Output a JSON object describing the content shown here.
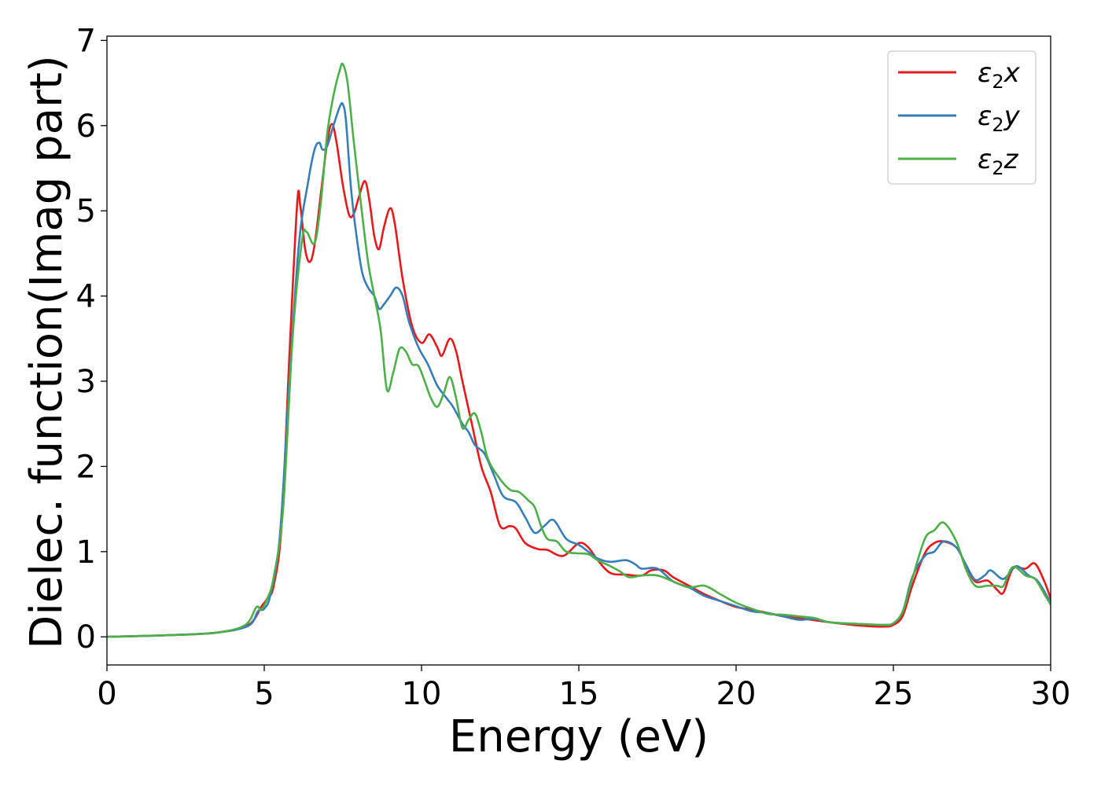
{
  "chart_data": {
    "type": "line",
    "title": "",
    "xlabel": "Energy (eV)",
    "ylabel": "Dielec. function(Imag part)",
    "xlim": [
      0,
      30
    ],
    "ylim": [
      -0.33,
      7.05
    ],
    "xticks": [
      0,
      5,
      10,
      15,
      20,
      25,
      30
    ],
    "yticks": [
      0,
      1,
      2,
      3,
      4,
      5,
      6,
      7
    ],
    "grid": false,
    "legend_position": "top-right",
    "series": [
      {
        "name": "ε₂x",
        "legend_base": "ε",
        "legend_sub": "2",
        "legend_suffix": "x",
        "color": "#e41a1c",
        "points": [
          [
            0,
            0
          ],
          [
            2,
            0.02
          ],
          [
            3.5,
            0.05
          ],
          [
            4.5,
            0.14
          ],
          [
            4.9,
            0.35
          ],
          [
            5.1,
            0.45
          ],
          [
            5.3,
            0.6
          ],
          [
            5.55,
            1.3
          ],
          [
            5.8,
            3.3
          ],
          [
            6.05,
            5.1
          ],
          [
            6.15,
            5.05
          ],
          [
            6.3,
            4.55
          ],
          [
            6.45,
            4.4
          ],
          [
            6.6,
            4.6
          ],
          [
            6.8,
            5.2
          ],
          [
            7.0,
            5.8
          ],
          [
            7.15,
            6.02
          ],
          [
            7.3,
            5.8
          ],
          [
            7.5,
            5.3
          ],
          [
            7.7,
            4.95
          ],
          [
            7.85,
            4.97
          ],
          [
            8.0,
            5.15
          ],
          [
            8.2,
            5.35
          ],
          [
            8.35,
            5.1
          ],
          [
            8.5,
            4.7
          ],
          [
            8.65,
            4.55
          ],
          [
            8.8,
            4.8
          ],
          [
            9.0,
            5.03
          ],
          [
            9.15,
            4.85
          ],
          [
            9.4,
            4.2
          ],
          [
            9.7,
            3.65
          ],
          [
            10.0,
            3.45
          ],
          [
            10.25,
            3.55
          ],
          [
            10.5,
            3.4
          ],
          [
            10.65,
            3.3
          ],
          [
            10.9,
            3.5
          ],
          [
            11.1,
            3.35
          ],
          [
            11.3,
            3.0
          ],
          [
            11.6,
            2.5
          ],
          [
            11.9,
            2.0
          ],
          [
            12.2,
            1.7
          ],
          [
            12.5,
            1.3
          ],
          [
            12.8,
            1.3
          ],
          [
            13.0,
            1.27
          ],
          [
            13.3,
            1.1
          ],
          [
            13.7,
            1.03
          ],
          [
            14.0,
            1.02
          ],
          [
            14.5,
            0.95
          ],
          [
            15.0,
            1.1
          ],
          [
            15.3,
            1.05
          ],
          [
            15.6,
            0.9
          ],
          [
            16.0,
            0.75
          ],
          [
            16.5,
            0.73
          ],
          [
            17.0,
            0.72
          ],
          [
            17.3,
            0.78
          ],
          [
            17.7,
            0.78
          ],
          [
            18.0,
            0.7
          ],
          [
            18.5,
            0.6
          ],
          [
            19.0,
            0.5
          ],
          [
            19.5,
            0.42
          ],
          [
            20.0,
            0.35
          ],
          [
            20.5,
            0.32
          ],
          [
            21.0,
            0.28
          ],
          [
            21.5,
            0.24
          ],
          [
            22.0,
            0.22
          ],
          [
            23.0,
            0.17
          ],
          [
            24.0,
            0.13
          ],
          [
            24.7,
            0.12
          ],
          [
            25.0,
            0.14
          ],
          [
            25.3,
            0.25
          ],
          [
            25.6,
            0.6
          ],
          [
            26.0,
            0.98
          ],
          [
            26.3,
            1.1
          ],
          [
            26.6,
            1.12
          ],
          [
            27.0,
            1.05
          ],
          [
            27.3,
            0.85
          ],
          [
            27.6,
            0.65
          ],
          [
            28.0,
            0.66
          ],
          [
            28.3,
            0.55
          ],
          [
            28.5,
            0.52
          ],
          [
            28.8,
            0.8
          ],
          [
            29.2,
            0.8
          ],
          [
            29.5,
            0.86
          ],
          [
            29.8,
            0.65
          ],
          [
            30,
            0.45
          ]
        ]
      },
      {
        "name": "ε₂y",
        "legend_base": "ε",
        "legend_sub": "2",
        "legend_suffix": "y",
        "color": "#377eb8",
        "points": [
          [
            0,
            0
          ],
          [
            2,
            0.02
          ],
          [
            3.5,
            0.05
          ],
          [
            4.5,
            0.13
          ],
          [
            4.8,
            0.3
          ],
          [
            5.0,
            0.33
          ],
          [
            5.2,
            0.5
          ],
          [
            5.5,
            1.2
          ],
          [
            5.8,
            3.0
          ],
          [
            6.1,
            4.6
          ],
          [
            6.4,
            5.35
          ],
          [
            6.6,
            5.72
          ],
          [
            6.75,
            5.8
          ],
          [
            6.85,
            5.72
          ],
          [
            7.0,
            5.76
          ],
          [
            7.2,
            6.0
          ],
          [
            7.4,
            6.22
          ],
          [
            7.5,
            6.25
          ],
          [
            7.6,
            6.05
          ],
          [
            7.75,
            5.3
          ],
          [
            7.9,
            4.8
          ],
          [
            8.1,
            4.3
          ],
          [
            8.3,
            4.1
          ],
          [
            8.5,
            4.0
          ],
          [
            8.65,
            3.85
          ],
          [
            8.8,
            3.9
          ],
          [
            9.0,
            4.0
          ],
          [
            9.2,
            4.1
          ],
          [
            9.4,
            4.0
          ],
          [
            9.6,
            3.7
          ],
          [
            9.9,
            3.4
          ],
          [
            10.2,
            3.2
          ],
          [
            10.5,
            2.95
          ],
          [
            10.8,
            2.8
          ],
          [
            11.0,
            2.7
          ],
          [
            11.3,
            2.5
          ],
          [
            11.5,
            2.4
          ],
          [
            11.7,
            2.25
          ],
          [
            12.0,
            2.15
          ],
          [
            12.3,
            1.9
          ],
          [
            12.6,
            1.65
          ],
          [
            13.0,
            1.58
          ],
          [
            13.3,
            1.4
          ],
          [
            13.6,
            1.22
          ],
          [
            13.9,
            1.3
          ],
          [
            14.2,
            1.37
          ],
          [
            14.6,
            1.15
          ],
          [
            15.0,
            1.08
          ],
          [
            15.3,
            1.0
          ],
          [
            15.6,
            0.92
          ],
          [
            16.0,
            0.88
          ],
          [
            16.5,
            0.9
          ],
          [
            16.8,
            0.85
          ],
          [
            17.0,
            0.8
          ],
          [
            17.5,
            0.8
          ],
          [
            18.0,
            0.65
          ],
          [
            18.5,
            0.58
          ],
          [
            19.0,
            0.48
          ],
          [
            19.5,
            0.42
          ],
          [
            20.0,
            0.36
          ],
          [
            20.5,
            0.3
          ],
          [
            21.0,
            0.28
          ],
          [
            21.5,
            0.24
          ],
          [
            22.0,
            0.2
          ],
          [
            22.5,
            0.21
          ],
          [
            23.0,
            0.17
          ],
          [
            24.0,
            0.15
          ],
          [
            24.7,
            0.14
          ],
          [
            25.0,
            0.16
          ],
          [
            25.3,
            0.3
          ],
          [
            25.6,
            0.7
          ],
          [
            26.0,
            0.95
          ],
          [
            26.3,
            1.0
          ],
          [
            26.6,
            1.12
          ],
          [
            27.0,
            1.05
          ],
          [
            27.3,
            0.85
          ],
          [
            27.6,
            0.67
          ],
          [
            27.9,
            0.72
          ],
          [
            28.1,
            0.78
          ],
          [
            28.5,
            0.68
          ],
          [
            28.9,
            0.83
          ],
          [
            29.3,
            0.72
          ],
          [
            29.6,
            0.65
          ],
          [
            30,
            0.4
          ]
        ]
      },
      {
        "name": "ε₂z",
        "legend_base": "ε",
        "legend_sub": "2",
        "legend_suffix": "z",
        "color": "#4daf4a",
        "points": [
          [
            0,
            0
          ],
          [
            2,
            0.02
          ],
          [
            3.5,
            0.05
          ],
          [
            4.4,
            0.14
          ],
          [
            4.75,
            0.35
          ],
          [
            4.9,
            0.32
          ],
          [
            5.1,
            0.45
          ],
          [
            5.3,
            0.7
          ],
          [
            5.6,
            1.5
          ],
          [
            5.9,
            3.5
          ],
          [
            6.2,
            4.65
          ],
          [
            6.35,
            4.75
          ],
          [
            6.6,
            4.62
          ],
          [
            6.8,
            5.1
          ],
          [
            7.0,
            5.9
          ],
          [
            7.2,
            6.35
          ],
          [
            7.4,
            6.65
          ],
          [
            7.5,
            6.72
          ],
          [
            7.65,
            6.5
          ],
          [
            7.85,
            5.8
          ],
          [
            8.1,
            5.0
          ],
          [
            8.3,
            4.4
          ],
          [
            8.5,
            4.0
          ],
          [
            8.7,
            3.6
          ],
          [
            8.9,
            2.9
          ],
          [
            9.1,
            3.1
          ],
          [
            9.3,
            3.38
          ],
          [
            9.5,
            3.35
          ],
          [
            9.7,
            3.2
          ],
          [
            9.9,
            3.18
          ],
          [
            10.1,
            3.0
          ],
          [
            10.3,
            2.8
          ],
          [
            10.5,
            2.7
          ],
          [
            10.7,
            2.85
          ],
          [
            10.9,
            3.05
          ],
          [
            11.1,
            2.8
          ],
          [
            11.3,
            2.45
          ],
          [
            11.5,
            2.55
          ],
          [
            11.7,
            2.62
          ],
          [
            11.9,
            2.4
          ],
          [
            12.1,
            2.1
          ],
          [
            12.4,
            1.9
          ],
          [
            12.8,
            1.73
          ],
          [
            13.1,
            1.7
          ],
          [
            13.4,
            1.6
          ],
          [
            13.6,
            1.52
          ],
          [
            13.8,
            1.3
          ],
          [
            14.0,
            1.15
          ],
          [
            14.3,
            1.12
          ],
          [
            14.6,
            1.0
          ],
          [
            15.0,
            0.98
          ],
          [
            15.3,
            0.97
          ],
          [
            15.6,
            0.9
          ],
          [
            16.0,
            0.83
          ],
          [
            16.3,
            0.77
          ],
          [
            16.6,
            0.7
          ],
          [
            17.0,
            0.72
          ],
          [
            17.5,
            0.72
          ],
          [
            18.0,
            0.65
          ],
          [
            18.5,
            0.58
          ],
          [
            19.0,
            0.6
          ],
          [
            19.5,
            0.5
          ],
          [
            20.0,
            0.4
          ],
          [
            20.5,
            0.33
          ],
          [
            21.0,
            0.27
          ],
          [
            21.5,
            0.26
          ],
          [
            22.0,
            0.24
          ],
          [
            22.5,
            0.22
          ],
          [
            23.0,
            0.17
          ],
          [
            24.0,
            0.15
          ],
          [
            24.7,
            0.14
          ],
          [
            25.0,
            0.16
          ],
          [
            25.3,
            0.3
          ],
          [
            25.6,
            0.68
          ],
          [
            26.0,
            1.15
          ],
          [
            26.3,
            1.25
          ],
          [
            26.6,
            1.34
          ],
          [
            27.0,
            1.12
          ],
          [
            27.3,
            0.8
          ],
          [
            27.6,
            0.6
          ],
          [
            28.0,
            0.6
          ],
          [
            28.3,
            0.6
          ],
          [
            28.5,
            0.6
          ],
          [
            28.8,
            0.82
          ],
          [
            29.2,
            0.72
          ],
          [
            29.5,
            0.68
          ],
          [
            29.8,
            0.5
          ],
          [
            30,
            0.38
          ]
        ]
      }
    ]
  }
}
